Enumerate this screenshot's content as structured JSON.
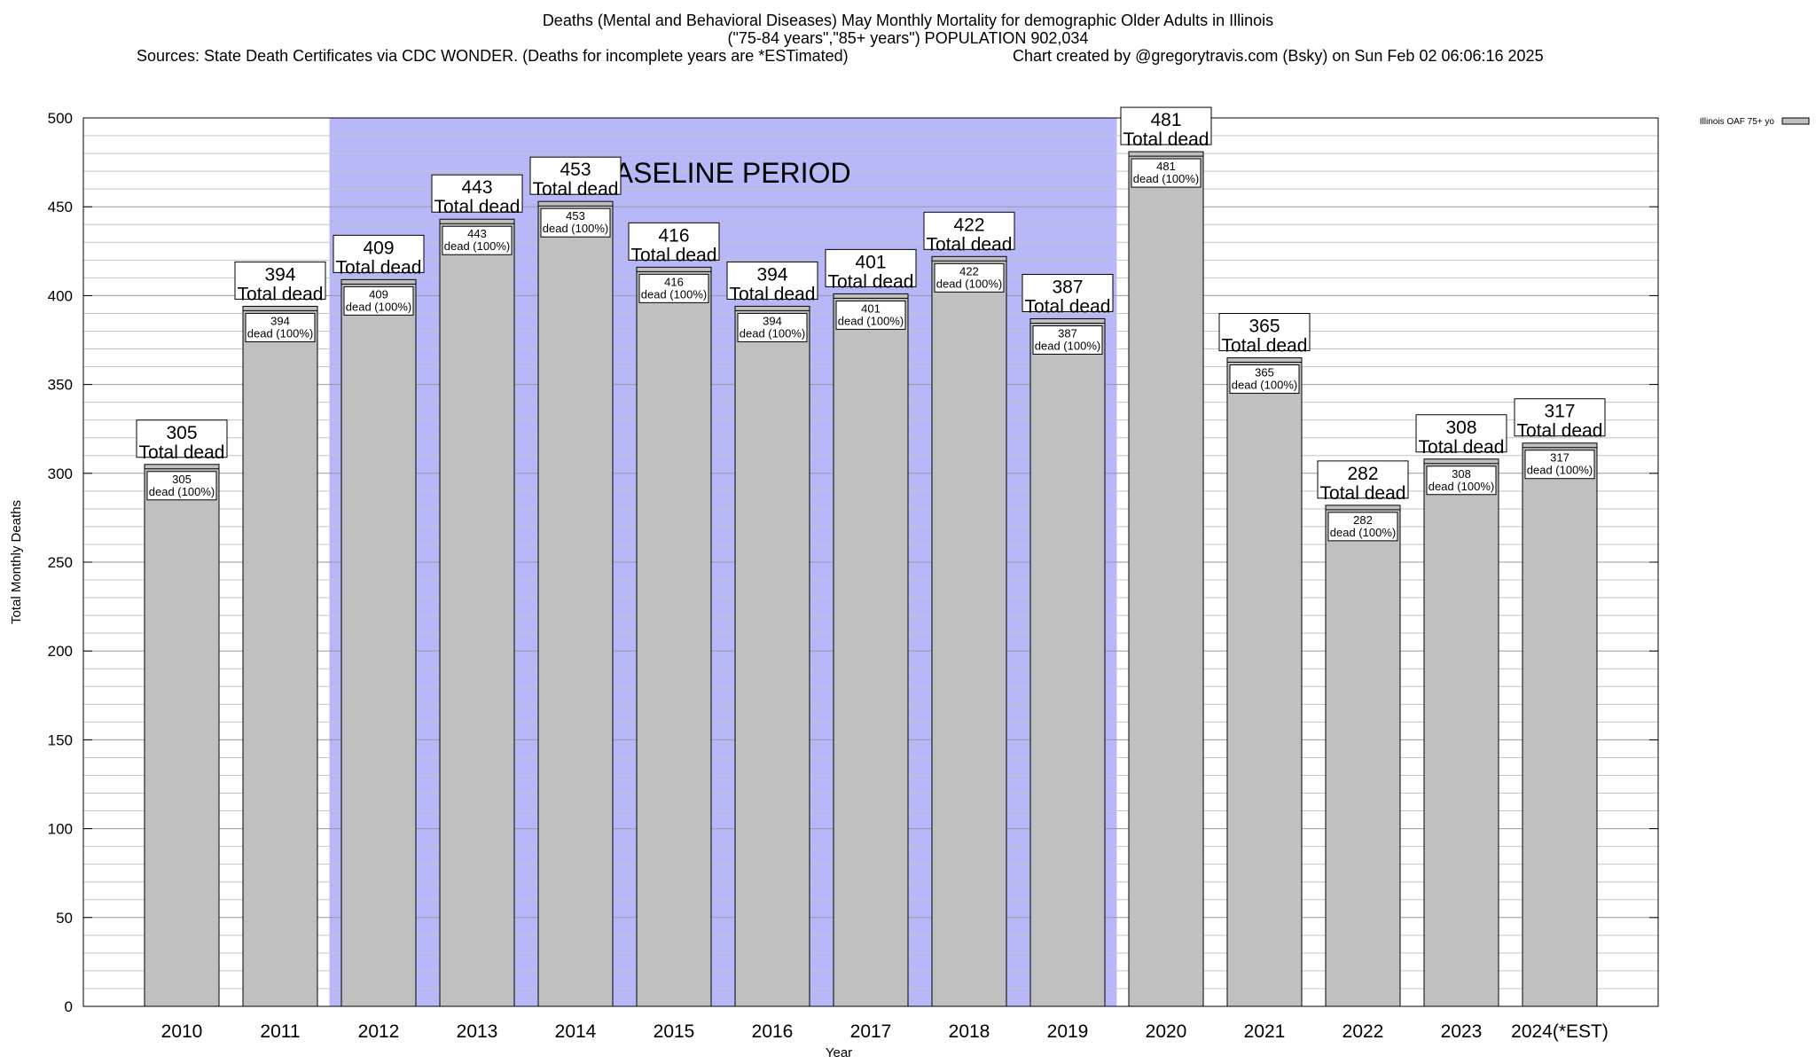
{
  "header": {
    "title_line1": "Deaths (Mental and Behavioral Diseases) May Monthly Mortality for demographic Older Adults in Illinois",
    "title_line2": "(\"75-84 years\",\"85+ years\") POPULATION 902,034",
    "sources": "Sources: State Death Certificates via CDC WONDER. (Deaths for incomplete years are *ESTimated)",
    "credit": "Chart created by @gregorytravis.com (Bsky) on Sun Feb 02 06:06:16 2025"
  },
  "chart_data": {
    "type": "bar",
    "categories": [
      "2010",
      "2011",
      "2012",
      "2013",
      "2014",
      "2015",
      "2016",
      "2017",
      "2018",
      "2019",
      "2020",
      "2021",
      "2022",
      "2023",
      "2024(*EST)"
    ],
    "series": [
      {
        "name": "Illinois OAF 75+ yo",
        "values": [
          305,
          394,
          409,
          443,
          453,
          416,
          394,
          401,
          422,
          387,
          481,
          365,
          282,
          308,
          317
        ]
      }
    ],
    "ylim": [
      0,
      500
    ],
    "yticks": [
      0,
      50,
      100,
      150,
      200,
      250,
      300,
      350,
      400,
      450,
      500
    ],
    "xlabel": "Year",
    "ylabel": "Total Monthly Deaths",
    "total_label_suffix": "Total dead",
    "inner_label_suffix": "dead (100%)",
    "baseline": {
      "label": "BASELINE PERIOD",
      "start": "2012",
      "end": "2019",
      "color": "#b8b8f8"
    },
    "bar_color": "#c0c0c0",
    "grid": true,
    "legend_position": "top-right"
  }
}
